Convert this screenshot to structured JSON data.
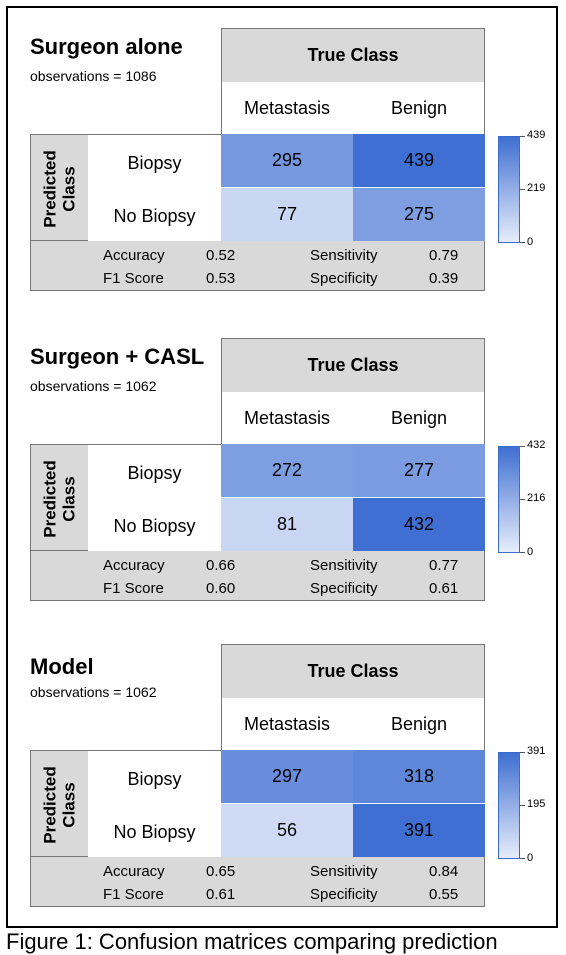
{
  "labels": {
    "true_class": "True Class",
    "predicted_class": "Predicted\nClass",
    "columns": [
      "Metastasis",
      "Benign"
    ],
    "rows": [
      "Biopsy",
      "No Biopsy"
    ],
    "stat_names": {
      "accuracy": "Accuracy",
      "f1": "F1 Score",
      "sensitivity": "Sensitivity",
      "specificity": "Specificity"
    }
  },
  "colors": {
    "low": "#e7edfa",
    "high": "#3f6fd2"
  },
  "panels": [
    {
      "title": "Surgeon alone",
      "observations": "observations = 1086",
      "stats": {
        "accuracy": "0.52",
        "f1": "0.53",
        "sensitivity": "0.79",
        "specificity": "0.39"
      },
      "colorbar_ticks": [
        "439",
        "219",
        "0"
      ]
    },
    {
      "title": "Surgeon + CASL",
      "observations": "observations = 1062",
      "stats": {
        "accuracy": "0.66",
        "f1": "0.60",
        "sensitivity": "0.77",
        "specificity": "0.61"
      },
      "colorbar_ticks": [
        "432",
        "216",
        "0"
      ]
    },
    {
      "title": "Model",
      "observations": "observations = 1062",
      "stats": {
        "accuracy": "0.65",
        "f1": "0.61",
        "sensitivity": "0.84",
        "specificity": "0.55"
      },
      "colorbar_ticks": [
        "391",
        "195",
        "0"
      ]
    }
  ],
  "chart_data": [
    {
      "type": "heatmap",
      "title": "Surgeon alone",
      "x_label": "True Class",
      "y_label": "Predicted\nClass",
      "columns": [
        "Metastasis",
        "Benign"
      ],
      "rows": [
        "Biopsy",
        "No Biopsy"
      ],
      "values": [
        [
          295,
          439
        ],
        [
          77,
          275
        ]
      ],
      "colorbar_range": [
        0,
        439
      ]
    },
    {
      "type": "heatmap",
      "title": "Surgeon + CASL",
      "x_label": "True Class",
      "y_label": "Predicted\nClass",
      "columns": [
        "Metastasis",
        "Benign"
      ],
      "rows": [
        "Biopsy",
        "No Biopsy"
      ],
      "values": [
        [
          272,
          277
        ],
        [
          81,
          432
        ]
      ],
      "colorbar_range": [
        0,
        432
      ]
    },
    {
      "type": "heatmap",
      "title": "Model",
      "x_label": "True Class",
      "y_label": "Predicted\nClass",
      "columns": [
        "Metastasis",
        "Benign"
      ],
      "rows": [
        "Biopsy",
        "No Biopsy"
      ],
      "values": [
        [
          297,
          318
        ],
        [
          56,
          391
        ]
      ],
      "colorbar_range": [
        0,
        391
      ]
    }
  ],
  "caption": "Figure 1: Confusion matrices comparing prediction"
}
